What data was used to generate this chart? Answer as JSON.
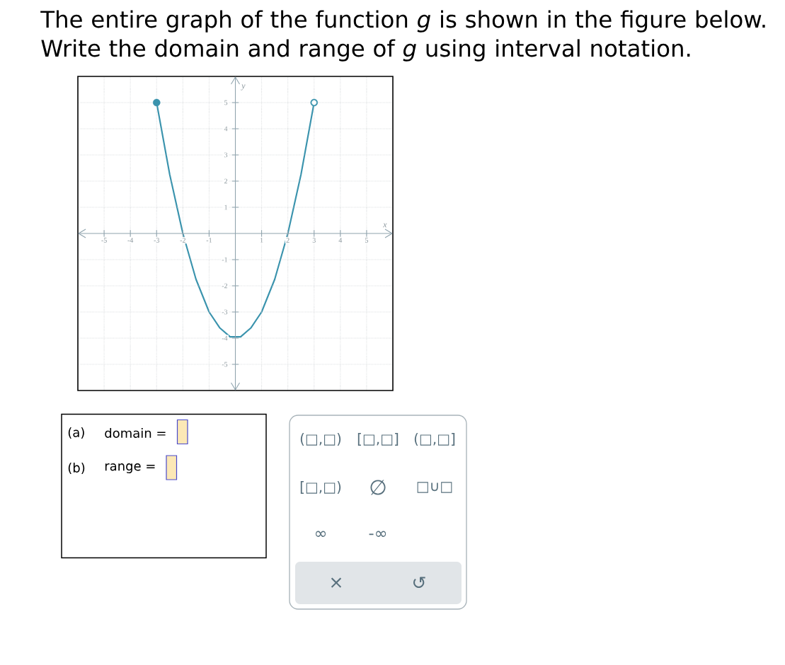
{
  "chart_data": {
    "type": "line",
    "title": "The entire graph of the function *g* is shown in the figure below. Write the domain and range of *g* using interval notation.",
    "xlabel": "x",
    "ylabel": "y",
    "x": [
      -3,
      -2.5,
      -2,
      -1.5,
      -1,
      -0.6,
      -0.2,
      0.2,
      0.6,
      1,
      1.5,
      2,
      2.5,
      3
    ],
    "series": [
      {
        "color": "#3a93ad",
        "marker": "none",
        "values": [
          5,
          2.25,
          0,
          -1.75,
          -3,
          -3.6,
          -3.95,
          -3.95,
          -3.6,
          -3,
          -1.75,
          0,
          2.25,
          5
        ]
      },
      {
        "type": "scatter",
        "color": "#3a93ad",
        "values": [
          5,
          null,
          null,
          null,
          null,
          null,
          null,
          null,
          null,
          null,
          null,
          null,
          null,
          null
        ]
      },
      {
        "type": "scatter",
        "color": "#3a93ad",
        "values": [
          null,
          null,
          null,
          null,
          null,
          null,
          null,
          null,
          null,
          null,
          null,
          null,
          null,
          5
        ]
      },
      {
        "type": "scatter",
        "color": "#ffffff",
        "values": [
          null,
          null,
          null,
          null,
          null,
          null,
          null,
          null,
          null,
          null,
          null,
          null,
          null,
          5
        ]
      }
    ],
    "xlim": [
      -6,
      6
    ],
    "ylim": [
      -6,
      6
    ],
    "xticks": [
      -5,
      -4,
      -3,
      -2,
      -1,
      1,
      2,
      3,
      4,
      5
    ],
    "yticks": [
      -5,
      -4,
      -3,
      -2,
      -1,
      1,
      2,
      3,
      4,
      5
    ],
    "grid": true,
    "marker": "circle",
    "line_style": "solid",
    "annotations": [
      "(a)",
      "domain =",
      "(b)",
      "range =",
      "(□,□)",
      "[□,□]",
      "(□,□]",
      "[□,□)",
      "∅",
      "□∪□",
      "∞",
      "-∞",
      "×",
      "↺"
    ]
  }
}
